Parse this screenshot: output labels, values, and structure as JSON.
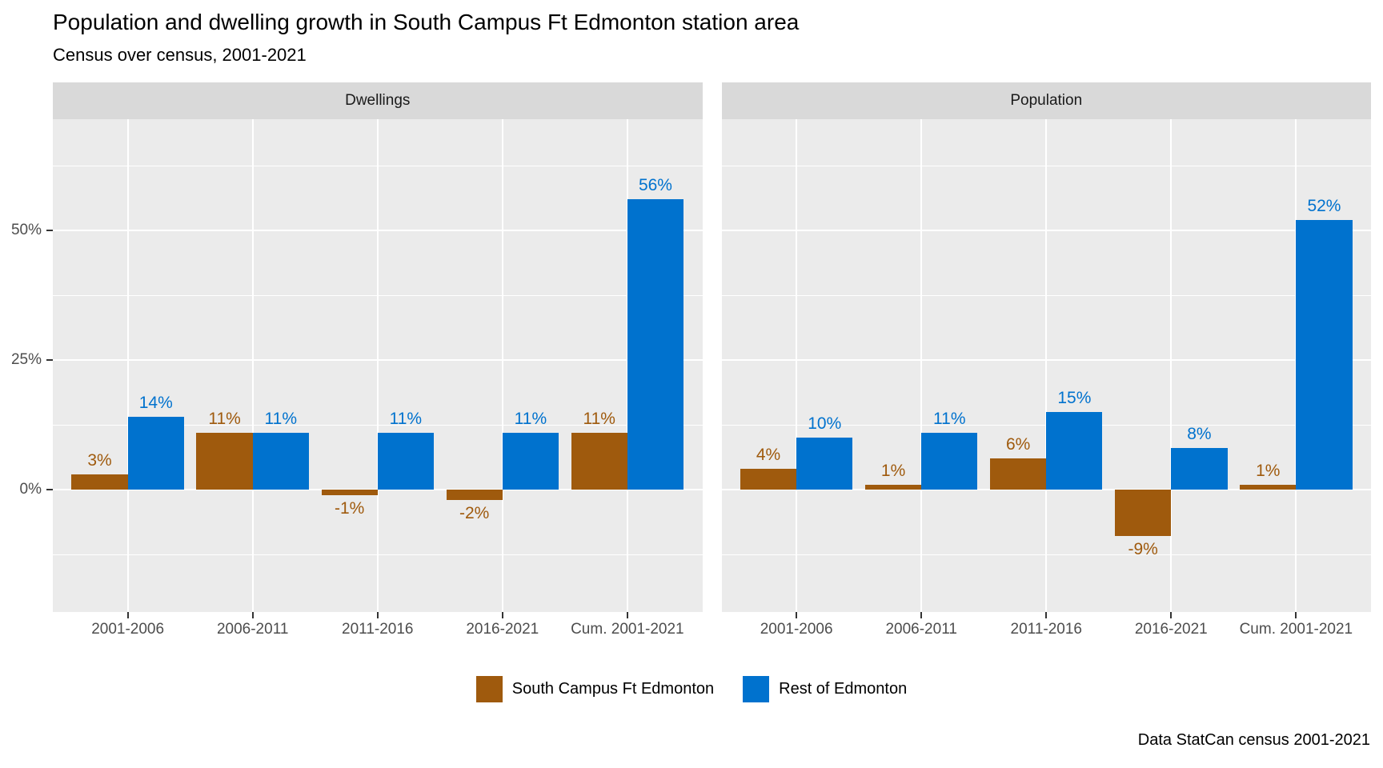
{
  "title": "Population and dwelling growth in South Campus Ft Edmonton station area",
  "subtitle": "Census over census, 2001-2021",
  "caption": "Data StatCan census 2001-2021",
  "legend": {
    "items": [
      {
        "label": "South Campus Ft Edmonton",
        "color": "#9f5a0d"
      },
      {
        "label": "Rest of Edmonton",
        "color": "#0072ce"
      }
    ]
  },
  "colors": {
    "panel_bg": "#ebebeb",
    "strip_bg": "#d9d9d9",
    "grid": "#ffffff",
    "axis_text": "#4d4d4d",
    "series_brown": "#9f5a0d",
    "series_blue": "#0072ce"
  },
  "chart_data": {
    "type": "bar",
    "orientation": "vertical",
    "dodged": true,
    "value_suffix": "%",
    "categories": [
      "2001-2006",
      "2006-2011",
      "2011-2016",
      "2016-2021",
      "Cum. 2001-2021"
    ],
    "facets": [
      {
        "label": "Dwellings",
        "series": [
          {
            "name": "South Campus Ft Edmonton",
            "color": "#9f5a0d",
            "values": [
              3,
              11,
              -1,
              -2,
              11
            ]
          },
          {
            "name": "Rest of Edmonton",
            "color": "#0072ce",
            "values": [
              14,
              11,
              11,
              11,
              56
            ]
          }
        ]
      },
      {
        "label": "Population",
        "series": [
          {
            "name": "South Campus Ft Edmonton",
            "color": "#9f5a0d",
            "values": [
              4,
              1,
              6,
              -9,
              1
            ]
          },
          {
            "name": "Rest of Edmonton",
            "color": "#0072ce",
            "values": [
              10,
              11,
              15,
              8,
              52
            ]
          }
        ]
      }
    ],
    "y_axis": {
      "ticks": [
        0,
        25,
        50
      ],
      "tick_labels": [
        "0%",
        "25%",
        "50%"
      ],
      "minor_ticks": [
        -12.5,
        12.5,
        37.5,
        62.5
      ],
      "range": [
        -23.6,
        71.5
      ]
    },
    "grid": true,
    "legend_position": "bottom"
  }
}
